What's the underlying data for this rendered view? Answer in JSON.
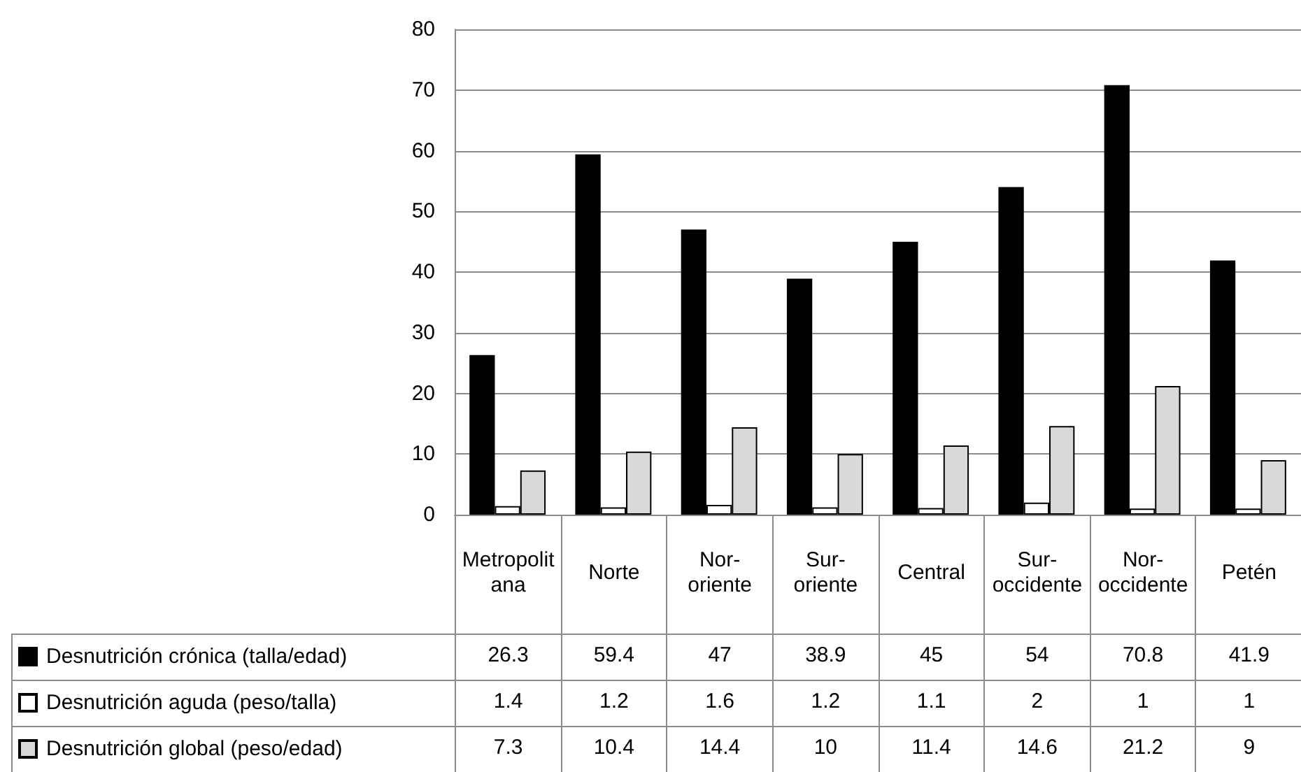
{
  "chart_data": {
    "type": "bar",
    "categories": [
      "Metropolitana",
      "Norte",
      "Nor-oriente",
      "Sur-oriente",
      "Central",
      "Sur-occidente",
      "Nor-occidente",
      "Petén"
    ],
    "series": [
      {
        "name": "Desnutrición crónica (talla/edad)",
        "color": "#000000",
        "values": [
          26.3,
          59.4,
          47,
          38.9,
          45,
          54,
          70.8,
          41.9
        ]
      },
      {
        "name": "Desnutrición aguda (peso/talla)",
        "color": "#ffffff",
        "values": [
          1.4,
          1.2,
          1.6,
          1.2,
          1.1,
          2,
          1,
          1
        ]
      },
      {
        "name": "Desnutrición global (peso/edad)",
        "color": "#d9d9d9",
        "values": [
          7.3,
          10.4,
          14.4,
          10,
          11.4,
          14.6,
          21.2,
          9
        ]
      }
    ],
    "ylim": [
      0,
      80
    ],
    "yticks": [
      0,
      10,
      20,
      30,
      40,
      50,
      60,
      70,
      80
    ],
    "grid": "y",
    "legend": "bottom left",
    "data_labels": true
  }
}
